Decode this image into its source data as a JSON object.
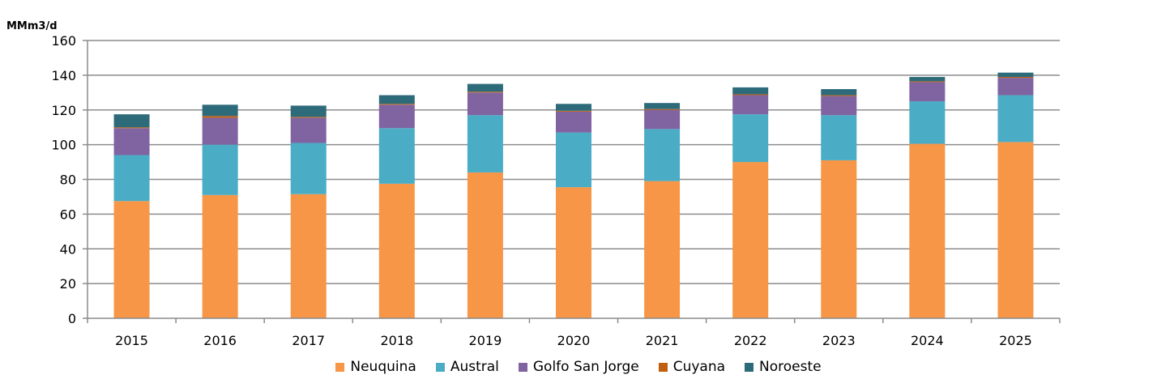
{
  "chart_data": {
    "type": "bar",
    "stacked": true,
    "unit_label": "MMm3/d",
    "categories": [
      "2015",
      "2016",
      "2017",
      "2018",
      "2019",
      "2020",
      "2021",
      "2022",
      "2023",
      "2024",
      "2025"
    ],
    "series": [
      {
        "name": "Neuquina",
        "color": "#F79646",
        "values": [
          67.5,
          71,
          71.5,
          77.5,
          84,
          75.5,
          79,
          90,
          91,
          100.5,
          101.5
        ]
      },
      {
        "name": "Austral",
        "color": "#4BACC6",
        "values": [
          26.5,
          29,
          29.5,
          32,
          33,
          31.5,
          30,
          27.5,
          26,
          24.5,
          27
        ]
      },
      {
        "name": "Golfo San Jorge",
        "color": "#8064A2",
        "values": [
          15.5,
          15.5,
          14.5,
          13.5,
          13,
          12,
          11,
          11,
          11,
          11,
          10
        ]
      },
      {
        "name": "Cuyana",
        "color": "#C0600F",
        "values": [
          0.5,
          1,
          0.5,
          0.5,
          0.5,
          0.5,
          0.5,
          0.5,
          0.5,
          0.5,
          0.5
        ]
      },
      {
        "name": "Noroeste",
        "color": "#2E6B7A",
        "values": [
          7.5,
          6.5,
          6.5,
          5,
          4.5,
          4,
          3.5,
          4,
          3.5,
          2.5,
          2.5
        ]
      }
    ],
    "ylim": [
      0,
      160
    ],
    "yticks": [
      0,
      20,
      40,
      60,
      80,
      100,
      120,
      140,
      160
    ],
    "grid": true,
    "legend_position": "bottom"
  }
}
